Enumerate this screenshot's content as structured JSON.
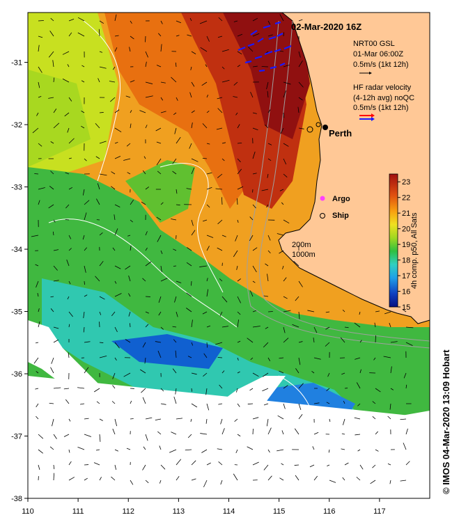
{
  "title": "02-Mar-2020 16Z",
  "credit": "© IMOS 04-Mar-2020 13:09 Hobart",
  "legend": {
    "gsl_line1": "NRT00 GSL",
    "gsl_line2": "01-Mar 06:00Z",
    "gsl_line3": "0.5m/s (1kt 12h)",
    "hf_line1": "HF radar velocity",
    "hf_line2": "(4-12h avg) noQC",
    "hf_line3": "0.5m/s (1kt 12h)",
    "argo_label": "Argo",
    "ship_label": "Ship",
    "depth_200": "200m",
    "depth_1000": "1000m"
  },
  "place_label": "Perth",
  "colorbar": {
    "label": "4h comp. p50, All Sats",
    "min": 15,
    "max": 23.5,
    "ticks": [
      "15",
      "16",
      "17",
      "18",
      "19",
      "20",
      "21",
      "22",
      "23"
    ]
  },
  "axes": {
    "x_ticks": [
      "110",
      "111",
      "112",
      "113",
      "114",
      "115",
      "116",
      "117"
    ],
    "y_ticks": [
      "-31",
      "-32",
      "-33",
      "-34",
      "-35",
      "-36",
      "-37",
      "-38"
    ],
    "lon_range": [
      110,
      118
    ],
    "lat_range": [
      -38,
      -30.2
    ]
  },
  "colors": {
    "land": "#ffc896",
    "cloud": "#ffffff",
    "hf_vector": "#1a1aff",
    "hf_sample": "#ff0000"
  }
}
